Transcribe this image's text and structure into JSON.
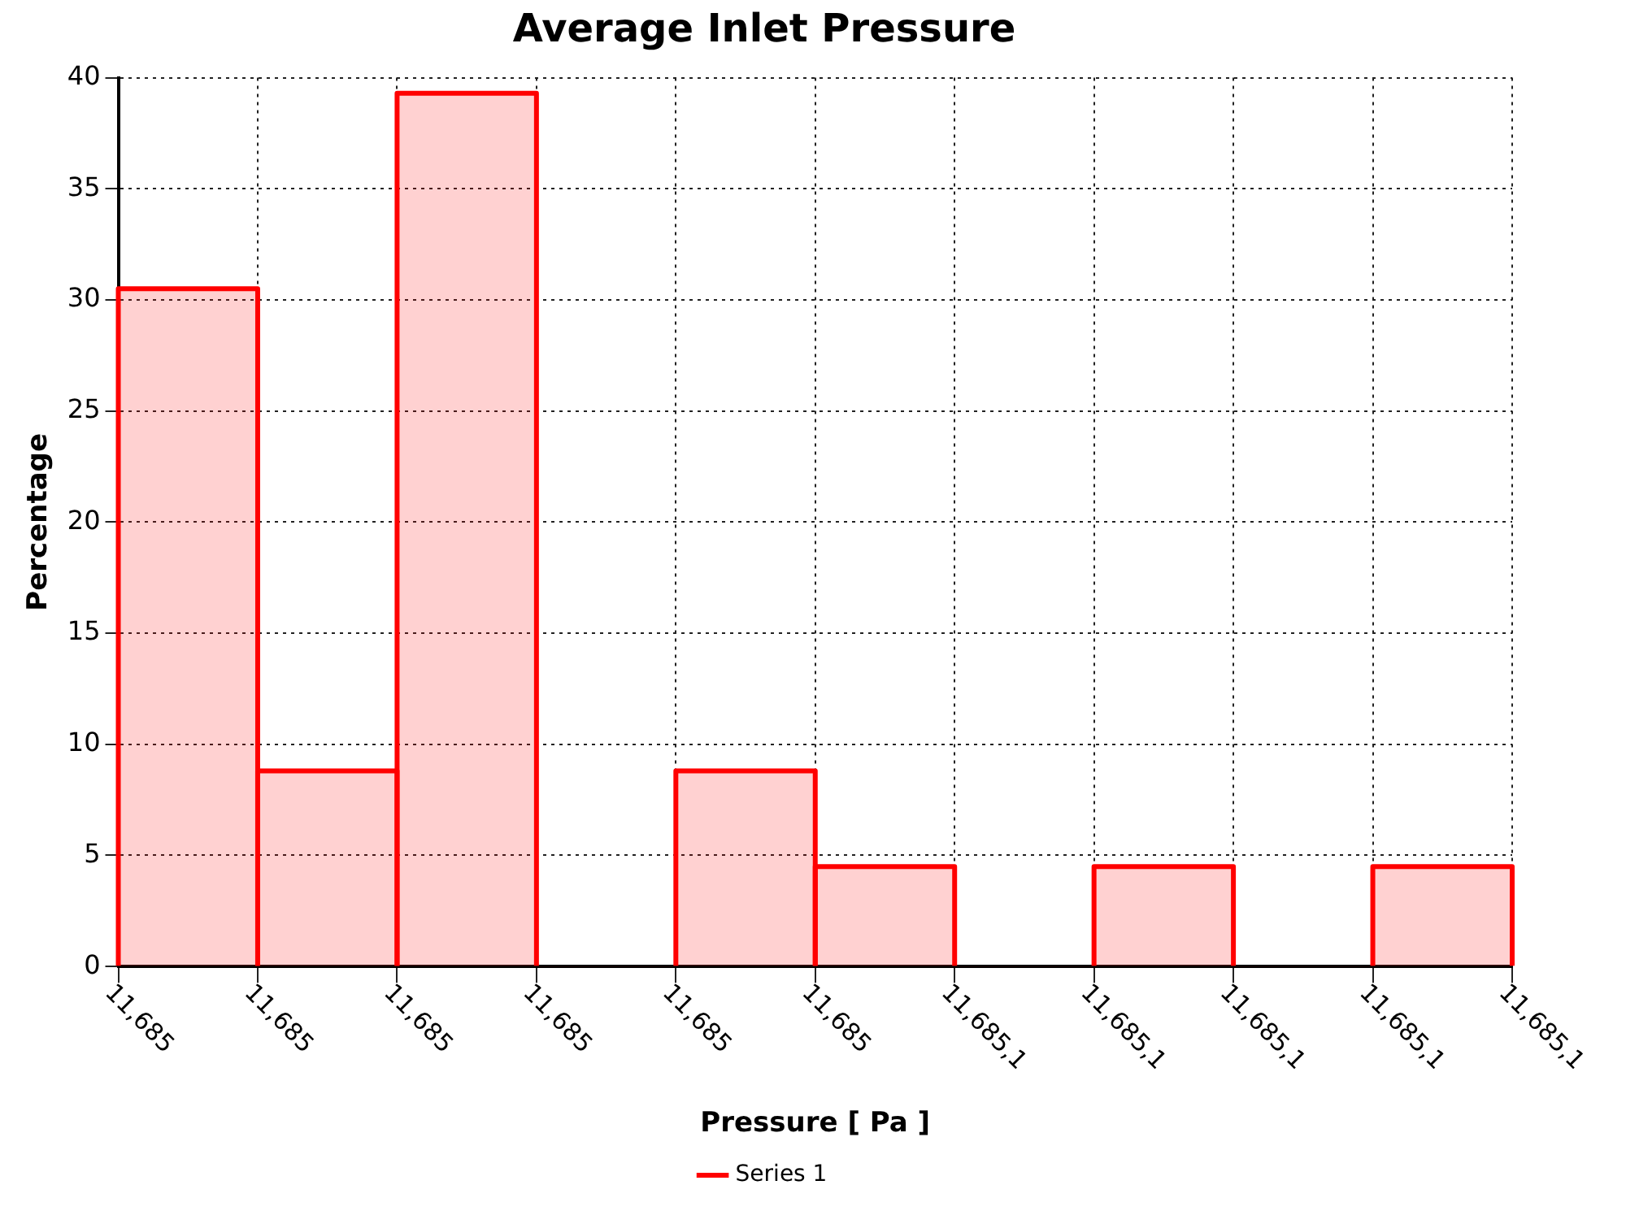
{
  "chart_data": {
    "type": "bar",
    "title": "Average Inlet Pressure",
    "xlabel": "Pressure [ Pa ]",
    "ylabel": "Percentage",
    "categories": [
      null,
      null,
      null,
      null,
      null,
      null,
      null,
      null,
      null,
      null
    ],
    "series": [
      {
        "name": "Series 1",
        "color": "#ff0000",
        "values": [
          30.5,
          8.8,
          39.3,
          0,
          8.8,
          4.5,
          0,
          4.5,
          0,
          4.5
        ]
      }
    ],
    "annotations": [
      "11,685",
      "11,685",
      "11,685",
      "11,685",
      "11,685",
      "11,685",
      "11,685,1",
      "11,685,1",
      "11,685,1",
      "11,685,1",
      "11,685,1"
    ],
    "ylim": [
      0,
      40
    ],
    "yticks": [
      0,
      5,
      10,
      15,
      20,
      25,
      30,
      35,
      40
    ],
    "grid": true,
    "legend": "bottom"
  }
}
